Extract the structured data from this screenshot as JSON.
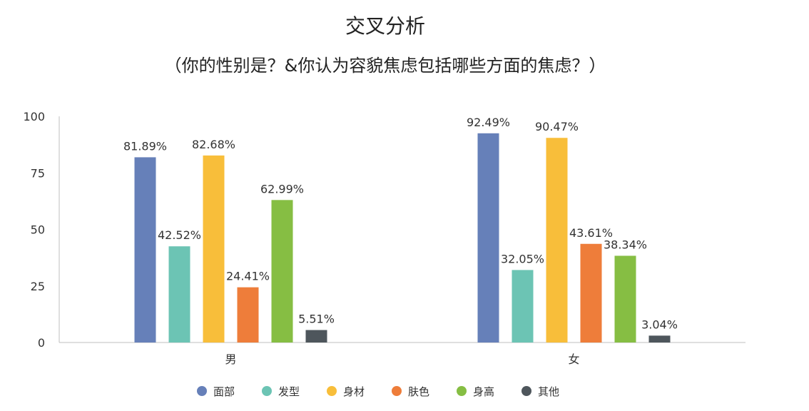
{
  "chart_data": {
    "type": "bar",
    "title": "交叉分析",
    "subtitle": "（你的性别是？&你认为容貌焦虑包括哪些方面的焦虑？）",
    "categories": [
      "男",
      "女"
    ],
    "ylim": [
      0,
      100
    ],
    "yticks": [
      0,
      25,
      50,
      75,
      100
    ],
    "grid": false,
    "legend_position": "bottom",
    "series": [
      {
        "name": "面部",
        "color": "#6680B9",
        "values": [
          81.89,
          92.49
        ],
        "labels": [
          "81.89%",
          "92.49%"
        ]
      },
      {
        "name": "发型",
        "color": "#6CC4B4",
        "values": [
          42.52,
          32.05
        ],
        "labels": [
          "42.52%",
          "32.05%"
        ]
      },
      {
        "name": "身材",
        "color": "#F8BE3A",
        "values": [
          82.68,
          90.47
        ],
        "labels": [
          "82.68%",
          "90.47%"
        ]
      },
      {
        "name": "肤色",
        "color": "#EE7D3A",
        "values": [
          24.41,
          43.61
        ],
        "labels": [
          "24.41%",
          "43.61%"
        ]
      },
      {
        "name": "身高",
        "color": "#86BE43",
        "values": [
          62.99,
          38.34
        ],
        "labels": [
          "62.99%",
          "38.34%"
        ]
      },
      {
        "name": "其他",
        "color": "#4E565C",
        "values": [
          5.51,
          3.04
        ],
        "labels": [
          "5.51%",
          "3.04%"
        ]
      }
    ]
  }
}
